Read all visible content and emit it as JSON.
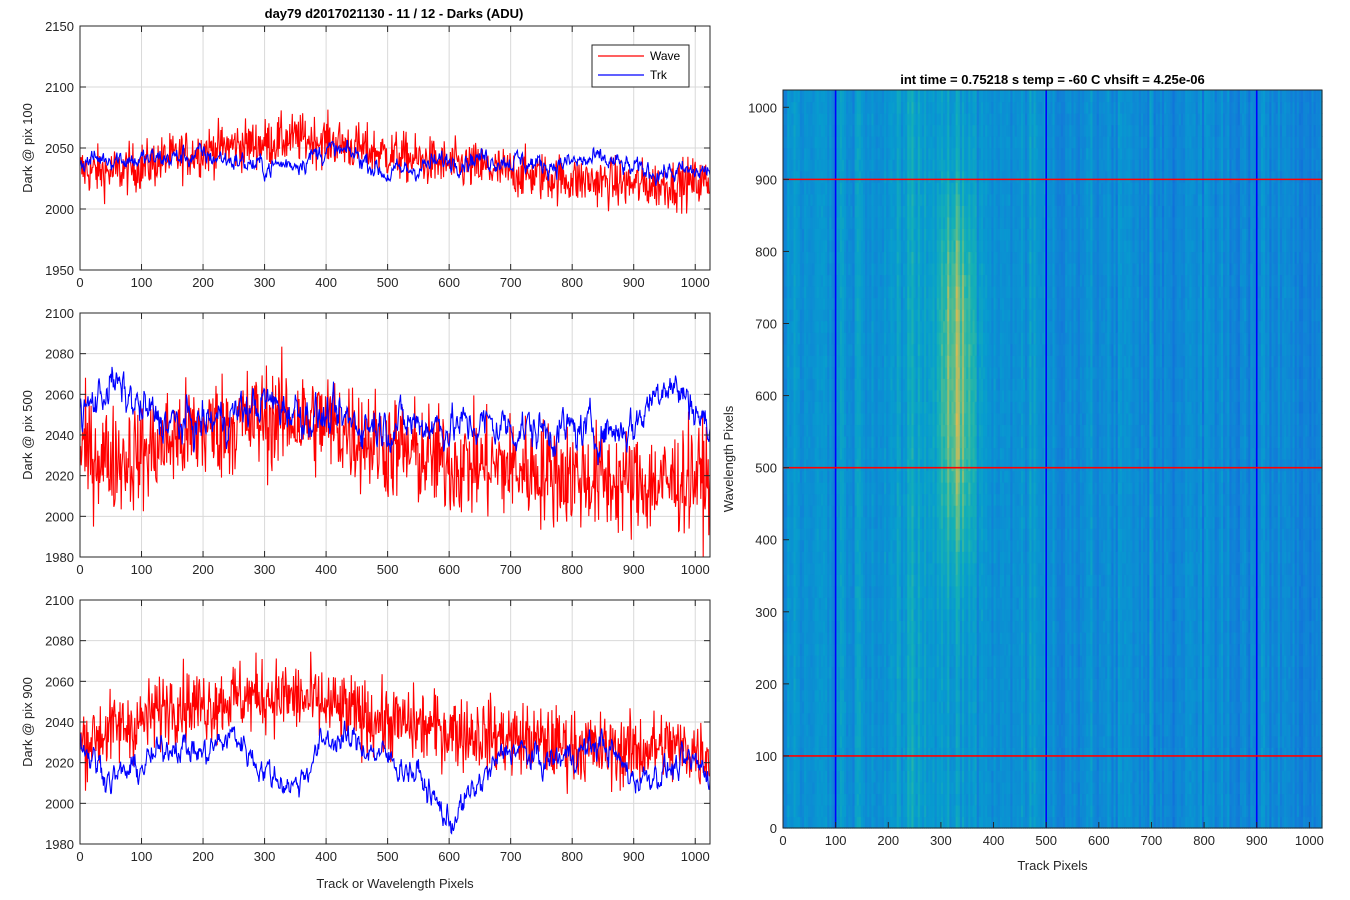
{
  "figure": {
    "title": "day79 d2017021130 - 11 / 12 - Darks (ADU)",
    "right_title": "int time = 0.75218 s    temp = -60 C    vhsift = 4.25e-06"
  },
  "legend": {
    "items": [
      "Wave",
      "Trk"
    ],
    "placement": "top-right"
  },
  "colors": {
    "wave": "#ff0000",
    "trk": "#0000ff",
    "grid": "#d9d9d9"
  },
  "chart_data": [
    {
      "type": "line",
      "ylabel": "Dark @ pix 100",
      "xlabel": "",
      "xlim": [
        0,
        1024
      ],
      "ylim": [
        1950,
        2150
      ],
      "yticks": [
        1950,
        2000,
        2050,
        2100,
        2150
      ],
      "xticks": [
        0,
        100,
        200,
        300,
        400,
        500,
        600,
        700,
        800,
        900,
        1000
      ],
      "grid": true,
      "series": [
        {
          "name": "Wave",
          "x": [
            0,
            50,
            100,
            150,
            200,
            250,
            300,
            350,
            400,
            450,
            500,
            550,
            600,
            650,
            700,
            750,
            800,
            850,
            900,
            950,
            1000,
            1024
          ],
          "values": [
            2032,
            2030,
            2035,
            2042,
            2048,
            2052,
            2054,
            2058,
            2056,
            2050,
            2045,
            2040,
            2036,
            2034,
            2030,
            2027,
            2024,
            2022,
            2020,
            2020,
            2022,
            2023
          ],
          "noise": 10
        },
        {
          "name": "Trk",
          "x": [
            0,
            50,
            100,
            150,
            200,
            250,
            300,
            350,
            400,
            450,
            500,
            550,
            600,
            650,
            700,
            750,
            800,
            850,
            900,
            950,
            1000,
            1024
          ],
          "values": [
            2038,
            2043,
            2040,
            2042,
            2044,
            2040,
            2034,
            2038,
            2048,
            2044,
            2028,
            2034,
            2040,
            2042,
            2040,
            2036,
            2038,
            2040,
            2032,
            2030,
            2030,
            2031
          ],
          "noise": 6
        }
      ]
    },
    {
      "type": "line",
      "ylabel": "Dark @ pix 500",
      "xlabel": "",
      "xlim": [
        0,
        1024
      ],
      "ylim": [
        1980,
        2100
      ],
      "yticks": [
        1980,
        2000,
        2020,
        2040,
        2060,
        2080,
        2100
      ],
      "xticks": [
        0,
        100,
        200,
        300,
        400,
        500,
        600,
        700,
        800,
        900,
        1000
      ],
      "grid": true,
      "series": [
        {
          "name": "Wave",
          "x": [
            0,
            50,
            100,
            150,
            200,
            250,
            300,
            350,
            400,
            450,
            500,
            550,
            600,
            650,
            700,
            750,
            800,
            850,
            900,
            950,
            1000,
            1024
          ],
          "values": [
            2032,
            2028,
            2030,
            2038,
            2042,
            2046,
            2048,
            2048,
            2046,
            2040,
            2034,
            2030,
            2026,
            2025,
            2024,
            2022,
            2020,
            2018,
            2016,
            2016,
            2020,
            2018
          ],
          "noise": 13
        },
        {
          "name": "Trk",
          "x": [
            0,
            50,
            100,
            150,
            200,
            250,
            300,
            350,
            400,
            450,
            500,
            550,
            600,
            650,
            700,
            750,
            800,
            850,
            900,
            950,
            1000,
            1024
          ],
          "values": [
            2048,
            2066,
            2052,
            2045,
            2046,
            2050,
            2056,
            2052,
            2048,
            2046,
            2045,
            2046,
            2044,
            2045,
            2044,
            2042,
            2042,
            2042,
            2044,
            2068,
            2054,
            2040
          ],
          "noise": 7
        }
      ]
    },
    {
      "type": "line",
      "ylabel": "Dark @ pix 900",
      "xlabel": "Track or Wavelength Pixels",
      "xlim": [
        0,
        1024
      ],
      "ylim": [
        1980,
        2100
      ],
      "yticks": [
        1980,
        2000,
        2020,
        2040,
        2060,
        2080,
        2100
      ],
      "xticks": [
        0,
        100,
        200,
        300,
        400,
        500,
        600,
        700,
        800,
        900,
        1000
      ],
      "grid": true,
      "series": [
        {
          "name": "Wave",
          "x": [
            0,
            50,
            100,
            150,
            200,
            250,
            300,
            350,
            400,
            450,
            500,
            550,
            600,
            650,
            700,
            750,
            800,
            850,
            900,
            950,
            1000,
            1024
          ],
          "values": [
            2030,
            2036,
            2040,
            2050,
            2048,
            2052,
            2053,
            2052,
            2048,
            2044,
            2040,
            2038,
            2036,
            2034,
            2032,
            2030,
            2028,
            2026,
            2026,
            2028,
            2026,
            2024
          ],
          "noise": 9
        },
        {
          "name": "Trk",
          "x": [
            0,
            50,
            100,
            150,
            200,
            250,
            300,
            350,
            400,
            450,
            500,
            550,
            600,
            650,
            700,
            750,
            800,
            850,
            900,
            950,
            1000,
            1024
          ],
          "values": [
            2030,
            2012,
            2018,
            2030,
            2024,
            2034,
            2016,
            2008,
            2032,
            2030,
            2022,
            2014,
            1990,
            2010,
            2028,
            2020,
            2024,
            2030,
            2012,
            2016,
            2020,
            2014
          ],
          "noise": 5
        }
      ]
    },
    {
      "type": "heatmap",
      "title": "int time = 0.75218 s    temp = -60 C    vhsift = 4.25e-06",
      "xlabel": "Track Pixels",
      "ylabel": "Wavelength Pixels",
      "xlim": [
        0,
        1024
      ],
      "ylim": [
        0,
        1024
      ],
      "xticks": [
        0,
        100,
        200,
        300,
        400,
        500,
        600,
        700,
        800,
        900,
        1000
      ],
      "yticks": [
        0,
        100,
        200,
        300,
        400,
        500,
        600,
        700,
        800,
        900,
        1000
      ],
      "colormap": "parula",
      "hot_region": {
        "x_center": 330,
        "x_halfwidth": 45,
        "y_range": [
          350,
          900
        ]
      },
      "vertical_lines": [
        100,
        500,
        900
      ],
      "horizontal_lines": [
        100,
        500,
        900
      ],
      "vertical_line_color": "#0000ff",
      "horizontal_line_color": "#ff0000"
    }
  ]
}
